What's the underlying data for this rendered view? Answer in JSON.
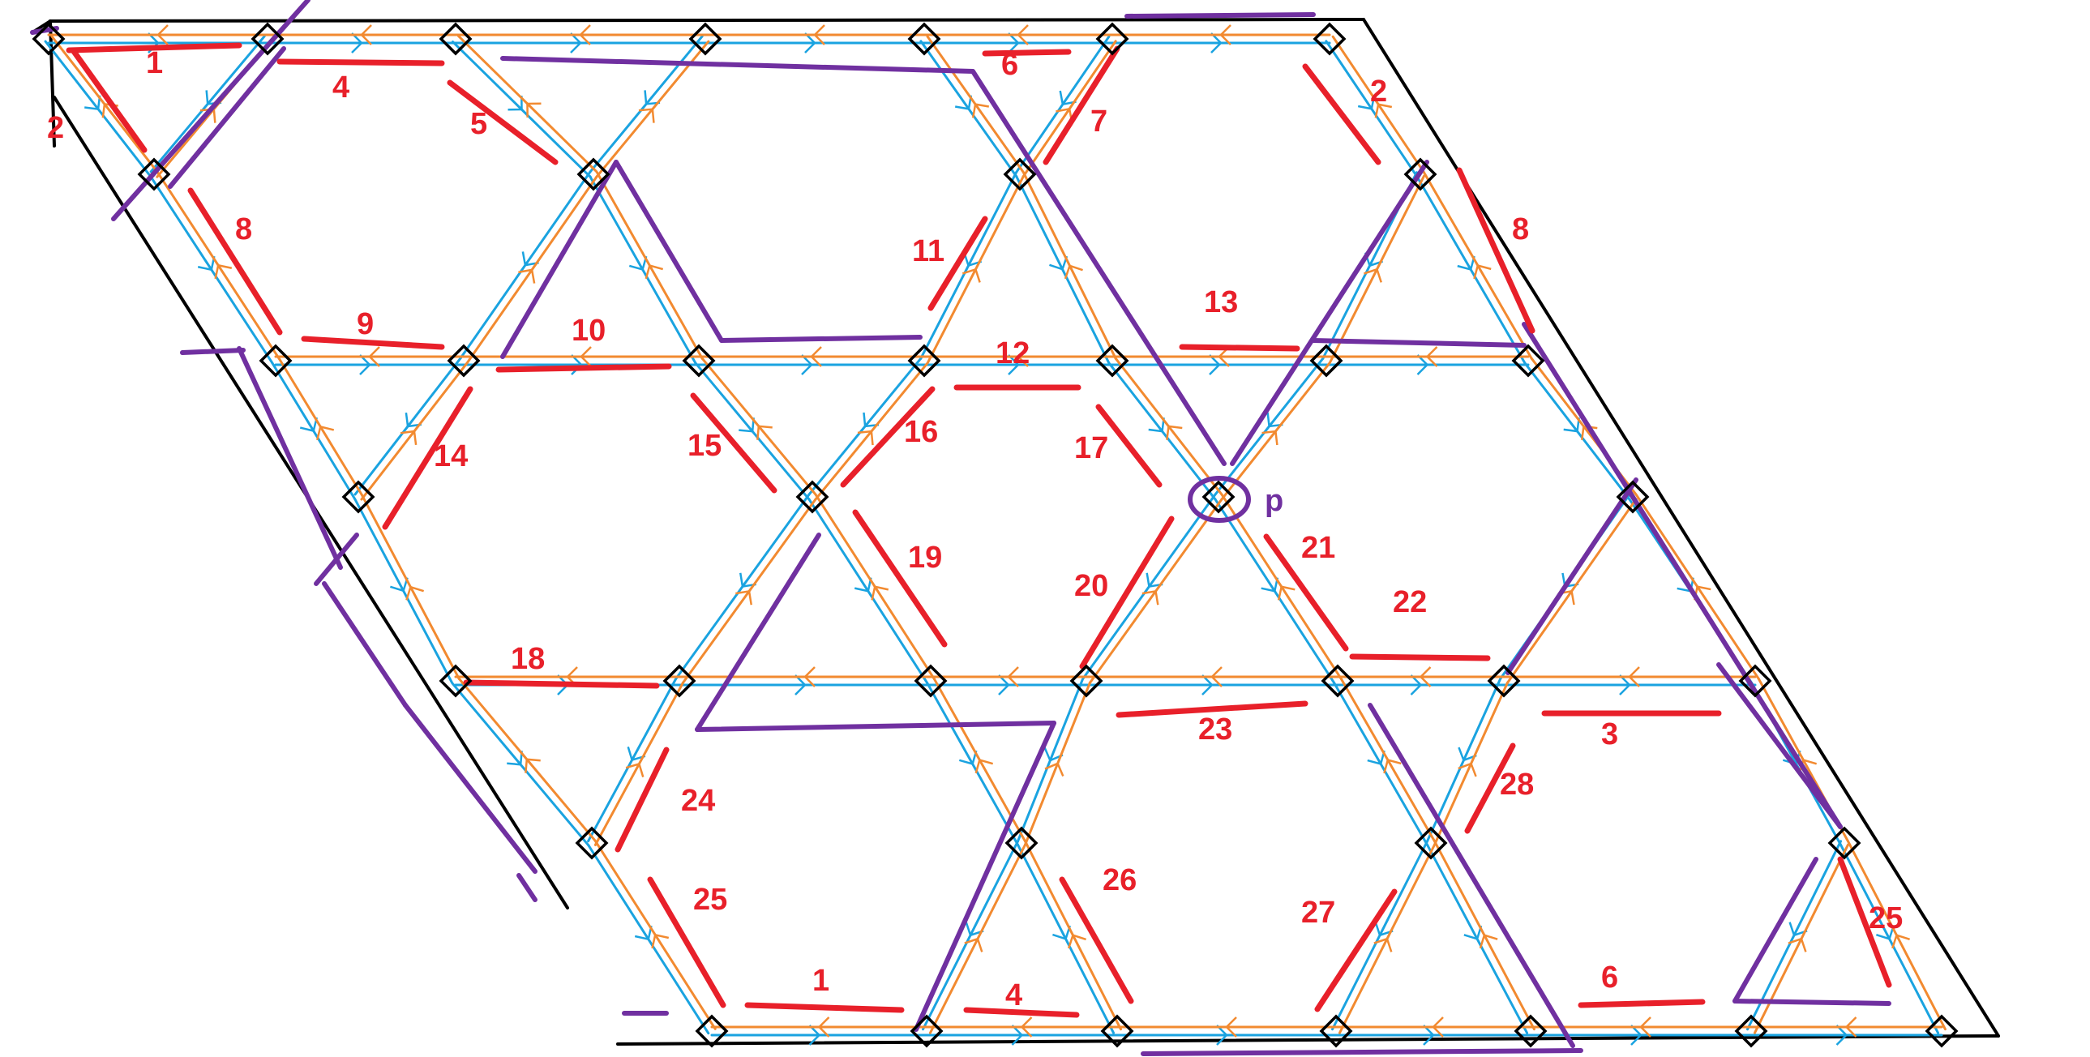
{
  "diagram": {
    "colors": {
      "border": "#000000",
      "blue": "#1aa3e0",
      "orange": "#f28a30",
      "purple": "#7030a0",
      "red": "#e8202a",
      "vertex": "#000000"
    },
    "point_label": "p",
    "edge_labels": [
      "1",
      "4",
      "5",
      "2",
      "6",
      "7",
      "2",
      "8",
      "8",
      "9",
      "10",
      "11",
      "12",
      "13",
      "14",
      "15",
      "16",
      "17",
      "18",
      "19",
      "20",
      "21",
      "22",
      "23",
      "3",
      "24",
      "25",
      "28",
      "26",
      "27",
      "25",
      "6",
      "1",
      "4"
    ]
  }
}
